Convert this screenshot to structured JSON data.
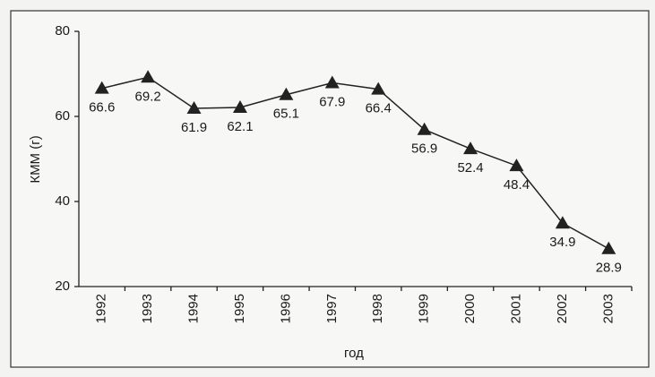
{
  "chart_data": {
    "type": "line",
    "categories": [
      "1992",
      "1993",
      "1994",
      "1995",
      "1996",
      "1997",
      "1998",
      "1999",
      "2000",
      "2001",
      "2002",
      "2003"
    ],
    "values": [
      66.6,
      69.2,
      61.9,
      62.1,
      65.1,
      67.9,
      66.4,
      56.9,
      52.4,
      48.4,
      34.9,
      28.9
    ],
    "color": "#222222",
    "ylabel": "КММ (г)",
    "xlabel": "год",
    "ylim": [
      20,
      80
    ],
    "yticks": [
      20,
      40,
      60,
      80
    ],
    "grid": false
  }
}
